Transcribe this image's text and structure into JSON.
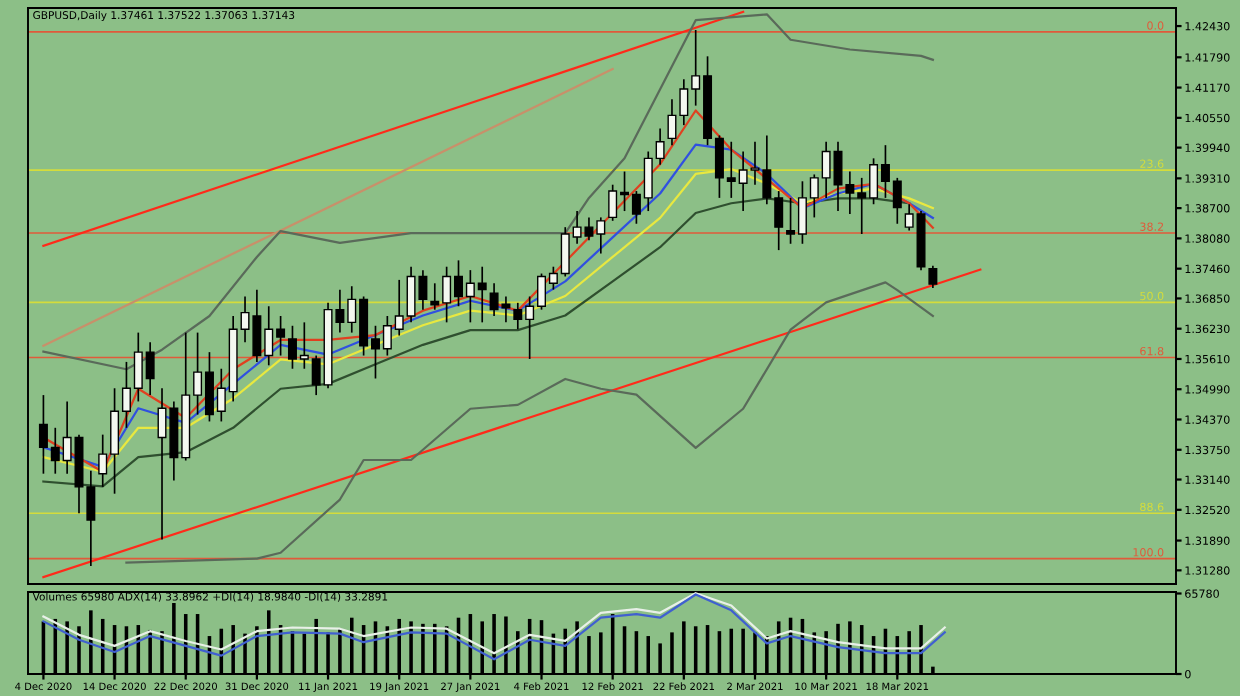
{
  "chart_data": [
    {
      "type": "candlestick",
      "title": "GBPUSD,Daily 1.37461 1.37522 1.37063 1.37143",
      "ohlc": [
        [
          1.3427,
          1.3487,
          1.3326,
          1.338
        ],
        [
          1.338,
          1.342,
          1.3326,
          1.3353
        ],
        [
          1.3353,
          1.3474,
          1.3326,
          1.34
        ],
        [
          1.34,
          1.3406,
          1.3245,
          1.3299
        ],
        [
          1.3299,
          1.3332,
          1.3137,
          1.3231
        ],
        [
          1.3326,
          1.3406,
          1.3299,
          1.3366
        ],
        [
          1.3366,
          1.3501,
          1.3285,
          1.3454
        ],
        [
          1.3454,
          1.3555,
          1.342,
          1.3501
        ],
        [
          1.3501,
          1.3615,
          1.3474,
          1.3575
        ],
        [
          1.3575,
          1.3595,
          1.3487,
          1.3521
        ],
        [
          1.34,
          1.3501,
          1.3191,
          1.346
        ],
        [
          1.346,
          1.3474,
          1.3312,
          1.3359
        ],
        [
          1.3359,
          1.3615,
          1.3353,
          1.3487
        ],
        [
          1.3487,
          1.3615,
          1.3447,
          1.3534
        ],
        [
          1.3534,
          1.3575,
          1.3433,
          1.3447
        ],
        [
          1.3454,
          1.3541,
          1.3433,
          1.3501
        ],
        [
          1.3494,
          1.3649,
          1.3474,
          1.3622
        ],
        [
          1.3622,
          1.3689,
          1.3595,
          1.3656
        ],
        [
          1.3649,
          1.3703,
          1.3555,
          1.3568
        ],
        [
          1.3568,
          1.3669,
          1.3548,
          1.3622
        ],
        [
          1.3622,
          1.3649,
          1.3568,
          1.3606
        ],
        [
          1.3602,
          1.3629,
          1.3541,
          1.3561
        ],
        [
          1.3561,
          1.3636,
          1.3541,
          1.3568
        ],
        [
          1.3561,
          1.3568,
          1.3487,
          1.3508
        ],
        [
          1.3508,
          1.3676,
          1.3501,
          1.3662
        ],
        [
          1.3662,
          1.3703,
          1.3615,
          1.3636
        ],
        [
          1.3636,
          1.371,
          1.3615,
          1.3683
        ],
        [
          1.3683,
          1.3689,
          1.3568,
          1.3588
        ],
        [
          1.3602,
          1.3629,
          1.3521,
          1.3582
        ],
        [
          1.3582,
          1.3649,
          1.3568,
          1.3629
        ],
        [
          1.3622,
          1.3723,
          1.3609,
          1.3649
        ],
        [
          1.3649,
          1.375,
          1.3636,
          1.373
        ],
        [
          1.373,
          1.3743,
          1.3662,
          1.3683
        ],
        [
          1.3679,
          1.3716,
          1.3662,
          1.3672
        ],
        [
          1.3676,
          1.375,
          1.3636,
          1.373
        ],
        [
          1.373,
          1.3763,
          1.3669,
          1.3689
        ],
        [
          1.3689,
          1.3743,
          1.3636,
          1.3716
        ],
        [
          1.3716,
          1.375,
          1.3636,
          1.3703
        ],
        [
          1.3696,
          1.3716,
          1.3649,
          1.3662
        ],
        [
          1.3673,
          1.3689,
          1.3636,
          1.3666
        ],
        [
          1.3662,
          1.3676,
          1.3622,
          1.3642
        ],
        [
          1.3642,
          1.3689,
          1.3561,
          1.3669
        ],
        [
          1.3669,
          1.3736,
          1.3662,
          1.373
        ],
        [
          1.3716,
          1.375,
          1.3703,
          1.3736
        ],
        [
          1.3736,
          1.3831,
          1.373,
          1.3817
        ],
        [
          1.3811,
          1.3864,
          1.3797,
          1.3831
        ],
        [
          1.3831,
          1.3851,
          1.3804,
          1.3813
        ],
        [
          1.3817,
          1.3851,
          1.3777,
          1.3844
        ],
        [
          1.3851,
          1.3918,
          1.3844,
          1.3905
        ],
        [
          1.3902,
          1.3945,
          1.3864,
          1.3898
        ],
        [
          1.3898,
          1.3905,
          1.3838,
          1.3858
        ],
        [
          1.3891,
          1.3986,
          1.3864,
          1.3972
        ],
        [
          1.3972,
          1.4033,
          1.3959,
          1.4006
        ],
        [
          1.4013,
          1.4093,
          1.3999,
          1.406
        ],
        [
          1.406,
          1.4134,
          1.404,
          1.4114
        ],
        [
          1.4114,
          1.4235,
          1.408,
          1.4141
        ],
        [
          1.4141,
          1.4181,
          1.3999,
          1.4013
        ],
        [
          1.4013,
          1.4019,
          1.3891,
          1.3932
        ],
        [
          1.3932,
          1.4006,
          1.3891,
          1.3925
        ],
        [
          1.3921,
          1.3986,
          1.3864,
          1.3948
        ],
        [
          1.3948,
          1.4006,
          1.3918,
          1.3952
        ],
        [
          1.3948,
          1.4019,
          1.3878,
          1.3891
        ],
        [
          1.3891,
          1.3905,
          1.3784,
          1.3831
        ],
        [
          1.3824,
          1.3891,
          1.3797,
          1.3817
        ],
        [
          1.3817,
          1.3925,
          1.3797,
          1.3891
        ],
        [
          1.3891,
          1.3939,
          1.3851,
          1.3932
        ],
        [
          1.3932,
          1.4006,
          1.3891,
          1.3986
        ],
        [
          1.3986,
          1.4006,
          1.3864,
          1.3918
        ],
        [
          1.3918,
          1.3945,
          1.3858,
          1.3901
        ],
        [
          1.3901,
          1.3932,
          1.3817,
          1.3891
        ],
        [
          1.3891,
          1.3972,
          1.3878,
          1.3959
        ],
        [
          1.3959,
          1.3999,
          1.3891,
          1.3925
        ],
        [
          1.3925,
          1.3932,
          1.3838,
          1.3871
        ],
        [
          1.3831,
          1.3878,
          1.3824,
          1.3858
        ],
        [
          1.3858,
          1.3864,
          1.3743,
          1.375
        ],
        [
          1.37461,
          1.37522,
          1.37063,
          1.37143
        ],
        null,
        null,
        null,
        null,
        null,
        null,
        null,
        null,
        null,
        null,
        null,
        null,
        null,
        null,
        null,
        null,
        null,
        null,
        null,
        null
      ],
      "series": [
        {
          "type": "line",
          "color": "#ff2a1a",
          "values": [
            1.3114,
            null,
            null,
            null,
            null,
            null,
            null,
            null,
            null,
            null,
            null,
            null,
            null,
            null,
            null,
            null,
            null,
            null,
            null,
            null,
            null,
            null,
            null,
            null,
            null,
            null,
            null,
            null,
            null,
            null,
            null,
            null,
            null,
            null,
            null,
            null,
            null,
            null,
            null,
            null,
            null,
            null,
            null,
            null,
            null,
            null,
            null,
            null,
            null,
            null,
            null,
            null,
            null,
            null,
            null,
            null,
            null,
            null,
            null,
            null,
            null,
            null,
            null,
            null,
            null,
            null,
            null,
            null,
            null,
            null,
            null,
            null,
            null,
            null,
            null,
            null,
            null,
            null,
            null,
            1.3744,
            null,
            null,
            null,
            null,
            null,
            null,
            null,
            null,
            null,
            null,
            null,
            null,
            null,
            null,
            null,
            null
          ]
        },
        {
          "type": "line",
          "color": "#ff2a1a",
          "values": [
            1.3793,
            null,
            null,
            null,
            null,
            null,
            null,
            null,
            null,
            null,
            null,
            null,
            null,
            null,
            null,
            null,
            null,
            null,
            null,
            null,
            null,
            null,
            null,
            null,
            null,
            null,
            null,
            null,
            null,
            null,
            null,
            null,
            null,
            null,
            null,
            null,
            null,
            null,
            null,
            null,
            null,
            null,
            null,
            null,
            null,
            null,
            null,
            null,
            null,
            null,
            null,
            null,
            null,
            null,
            null,
            null,
            null,
            null,
            null,
            1.4272,
            null,
            null,
            null,
            null,
            null,
            null,
            null,
            null,
            null,
            null,
            null,
            null,
            null,
            null,
            null,
            null,
            null,
            null,
            null,
            null,
            null,
            null,
            null,
            null,
            null,
            null,
            null,
            null,
            null,
            null,
            null,
            null,
            null,
            null,
            null,
            null
          ]
        },
        {
          "type": "line",
          "color": "#c8906a",
          "values": [
            1.3588,
            null,
            null,
            null,
            null,
            null,
            null,
            null,
            null,
            null,
            null,
            null,
            null,
            null,
            null,
            null,
            null,
            null,
            null,
            null,
            null,
            null,
            null,
            null,
            null,
            null,
            null,
            null,
            null,
            null,
            null,
            null,
            null,
            null,
            null,
            null,
            null,
            null,
            null,
            null,
            null,
            null,
            null,
            null,
            null,
            null,
            null,
            null,
            1.4155,
            null,
            null,
            null,
            null,
            null,
            null,
            null,
            null,
            null,
            null,
            null,
            null,
            null,
            null,
            null,
            null,
            null,
            null,
            null,
            null,
            null,
            null,
            null,
            null,
            null,
            null,
            null,
            null,
            null,
            null,
            null,
            null,
            null,
            null,
            null,
            null,
            null,
            null,
            null,
            null,
            null,
            null,
            null,
            null,
            null,
            null,
            null
          ]
        },
        {
          "type": "line",
          "color": "#5a6a5a",
          "values": [
            1.3576,
            null,
            null,
            null,
            null,
            null,
            null,
            1.354,
            null,
            null,
            1.358,
            null,
            null,
            null,
            1.3649,
            null,
            null,
            null,
            1.377,
            null,
            1.3823,
            null,
            null,
            null,
            null,
            1.3799,
            null,
            null,
            null,
            null,
            null,
            1.3819,
            null,
            null,
            1.3819,
            null,
            null,
            null,
            null,
            null,
            null,
            null,
            null,
            null,
            1.3819,
            null,
            1.3891,
            null,
            null,
            1.3972,
            null,
            null,
            null,
            null,
            null,
            1.4255,
            null,
            null,
            null,
            null,
            null,
            1.4267,
            null,
            1.4215,
            null,
            null,
            null,
            null,
            1.4195,
            null,
            null,
            null,
            null,
            null,
            1.4182,
            1.4174,
            null,
            null,
            null,
            null,
            null,
            null,
            null,
            null,
            null,
            null,
            null,
            null,
            null,
            null,
            null,
            null,
            null,
            null,
            null,
            null
          ]
        },
        {
          "type": "line",
          "color": "#5a6a5a",
          "values": [
            null,
            null,
            null,
            null,
            null,
            null,
            null,
            1.3144,
            null,
            null,
            null,
            null,
            null,
            null,
            null,
            null,
            null,
            null,
            1.3152,
            null,
            1.3164,
            null,
            null,
            null,
            null,
            1.3273,
            null,
            1.3354,
            null,
            null,
            null,
            1.3354,
            null,
            null,
            null,
            null,
            1.3459,
            null,
            null,
            null,
            1.3467,
            null,
            null,
            null,
            1.352,
            null,
            null,
            1.35,
            null,
            null,
            1.3488,
            null,
            null,
            null,
            null,
            1.3379,
            null,
            null,
            null,
            1.3459,
            null,
            null,
            null,
            1.3621,
            null,
            null,
            1.3677,
            null,
            null,
            null,
            null,
            1.3718,
            1.3702,
            null,
            null,
            1.3649,
            null,
            null,
            null,
            null,
            null,
            null,
            null,
            null,
            null,
            null,
            null,
            null,
            null,
            null,
            null,
            null,
            null,
            null,
            null,
            null
          ]
        },
        {
          "type": "line",
          "color": "#2f4f2f",
          "values": [
            1.331,
            null,
            null,
            null,
            null,
            1.33,
            null,
            null,
            1.336,
            null,
            null,
            null,
            1.337,
            null,
            null,
            null,
            1.342,
            null,
            null,
            null,
            1.35,
            null,
            null,
            null,
            1.351,
            null,
            null,
            null,
            1.355,
            null,
            null,
            null,
            1.359,
            null,
            null,
            null,
            1.362,
            null,
            null,
            null,
            1.362,
            null,
            null,
            null,
            1.365,
            null,
            null,
            null,
            1.372,
            null,
            null,
            null,
            1.379,
            null,
            null,
            1.386,
            null,
            null,
            1.388,
            null,
            null,
            1.389,
            null,
            null,
            1.388,
            null,
            null,
            1.389,
            null,
            null,
            1.389,
            null,
            null,
            1.388,
            null,
            null,
            null,
            null,
            null,
            null,
            null,
            null,
            null,
            null,
            null,
            null,
            null,
            null,
            null,
            null,
            null,
            null,
            null,
            null,
            null,
            null
          ]
        },
        {
          "type": "line",
          "color": "#e8e840",
          "values": [
            1.336,
            null,
            null,
            null,
            null,
            1.333,
            null,
            null,
            1.342,
            null,
            null,
            null,
            1.342,
            null,
            null,
            null,
            1.348,
            null,
            null,
            null,
            1.356,
            null,
            null,
            null,
            1.355,
            null,
            null,
            null,
            1.359,
            null,
            null,
            null,
            1.363,
            null,
            null,
            null,
            1.366,
            null,
            null,
            null,
            1.365,
            null,
            null,
            null,
            1.369,
            null,
            null,
            null,
            1.377,
            null,
            null,
            null,
            1.385,
            null,
            null,
            1.394,
            null,
            null,
            1.395,
            null,
            null,
            1.392,
            null,
            null,
            1.388,
            null,
            null,
            1.39,
            null,
            null,
            1.391,
            null,
            null,
            1.389,
            null,
            1.387,
            null,
            null,
            null,
            null,
            null,
            null,
            null,
            null,
            null,
            null,
            null,
            null,
            null,
            null,
            null,
            null,
            null,
            null,
            null,
            null
          ]
        },
        {
          "type": "line",
          "color": "#3050e0",
          "values": [
            1.338,
            null,
            null,
            null,
            null,
            1.334,
            null,
            null,
            1.346,
            null,
            null,
            null,
            1.343,
            null,
            null,
            null,
            1.351,
            null,
            null,
            null,
            1.359,
            null,
            null,
            null,
            1.357,
            null,
            null,
            null,
            1.361,
            null,
            null,
            null,
            1.365,
            null,
            null,
            null,
            1.368,
            null,
            null,
            null,
            1.366,
            null,
            null,
            null,
            1.372,
            null,
            null,
            null,
            1.381,
            null,
            null,
            null,
            1.39,
            null,
            null,
            1.4,
            null,
            null,
            1.399,
            null,
            null,
            1.394,
            null,
            null,
            1.387,
            null,
            null,
            1.39,
            null,
            null,
            1.392,
            null,
            null,
            1.388,
            null,
            1.385,
            null,
            null,
            null,
            null,
            null,
            null,
            null,
            null,
            null,
            null,
            null,
            null,
            null,
            null,
            null,
            null,
            null,
            null,
            null,
            null
          ]
        },
        {
          "type": "line",
          "color": "#e04020",
          "values": [
            1.34,
            null,
            null,
            null,
            null,
            1.333,
            null,
            null,
            1.35,
            null,
            null,
            null,
            1.344,
            null,
            null,
            null,
            1.354,
            null,
            null,
            null,
            1.36,
            null,
            null,
            null,
            1.36,
            null,
            null,
            null,
            1.361,
            null,
            null,
            null,
            1.366,
            null,
            null,
            null,
            1.369,
            null,
            null,
            null,
            1.366,
            null,
            null,
            null,
            1.376,
            null,
            null,
            null,
            1.386,
            null,
            null,
            null,
            1.396,
            null,
            null,
            1.407,
            null,
            null,
            1.399,
            null,
            null,
            1.393,
            null,
            null,
            1.387,
            null,
            null,
            1.391,
            null,
            null,
            1.392,
            null,
            null,
            1.388,
            null,
            1.383,
            null,
            null,
            null,
            null,
            null,
            null,
            null,
            null,
            null,
            null,
            null,
            null,
            null,
            null,
            null,
            null,
            null,
            null,
            null,
            null
          ]
        }
      ],
      "ref_lines": [
        {
          "axis": "y",
          "value": 1.4231,
          "color": "#e05a3a"
        },
        {
          "axis": "y",
          "value": 1.3948,
          "color": "#d4dc3c"
        },
        {
          "axis": "y",
          "value": 1.3819,
          "color": "#e05a3a"
        },
        {
          "axis": "y",
          "value": 1.3677,
          "color": "#d4dc3c"
        },
        {
          "axis": "y",
          "value": 1.3564,
          "color": "#e05a3a"
        },
        {
          "axis": "y",
          "value": 1.3245,
          "color": "#d4dc3c"
        },
        {
          "axis": "y",
          "value": 1.3152,
          "color": "#e05a3a"
        }
      ],
      "annotations": [
        {
          "text": "0.0",
          "y": 1.4231
        },
        {
          "text": "23.6",
          "y": 1.3948
        },
        {
          "text": "38.2",
          "y": 1.3819
        },
        {
          "text": "50.0",
          "y": 1.3677
        },
        {
          "text": "61.8",
          "y": 1.3564
        },
        {
          "text": "88.6",
          "y": 1.3245
        },
        {
          "text": "100.0",
          "y": 1.3152
        }
      ],
      "ylim": [
        1.31,
        1.428
      ],
      "yticks": [
        {
          "value": 1.4243,
          "label": "1.42430"
        },
        {
          "value": 1.4179,
          "label": "1.41790"
        },
        {
          "value": 1.4117,
          "label": "1.41170"
        },
        {
          "value": 1.4055,
          "label": "1.40550"
        },
        {
          "value": 1.3994,
          "label": "1.39940"
        },
        {
          "value": 1.3931,
          "label": "1.39310"
        },
        {
          "value": 1.387,
          "label": "1.38700"
        },
        {
          "value": 1.3808,
          "label": "1.38080"
        },
        {
          "value": 1.3746,
          "label": "1.37460"
        },
        {
          "value": 1.3685,
          "label": "1.36850"
        },
        {
          "value": 1.3623,
          "label": "1.36230"
        },
        {
          "value": 1.3561,
          "label": "1.35610"
        },
        {
          "value": 1.3499,
          "label": "1.34990"
        },
        {
          "value": 1.3437,
          "label": "1.34370"
        },
        {
          "value": 1.3375,
          "label": "1.33750"
        },
        {
          "value": 1.3314,
          "label": "1.33140"
        },
        {
          "value": 1.3252,
          "label": "1.32520"
        },
        {
          "value": 1.3189,
          "label": "1.31890"
        },
        {
          "value": 1.3128,
          "label": "1.31280"
        }
      ],
      "tick_labels": "y"
    },
    {
      "type": "bar",
      "title": "Volumes 65980 ADX(14) 33.8962 +DI(14) 18.9840 -DI(14) 33.2891",
      "categories": [
        "4 Dec 2020",
        null,
        null,
        null,
        null,
        null,
        "14 Dec 2020",
        null,
        null,
        null,
        null,
        null,
        "22 Dec 2020",
        null,
        null,
        null,
        null,
        null,
        "31 Dec 2020",
        null,
        null,
        null,
        null,
        null,
        "11 Jan 2021",
        null,
        null,
        null,
        null,
        null,
        "19 Jan 2021",
        null,
        null,
        null,
        null,
        null,
        "27 Jan 2021",
        null,
        null,
        null,
        null,
        null,
        "4 Feb 2021",
        null,
        null,
        null,
        null,
        null,
        "12 Feb 2021",
        null,
        null,
        null,
        null,
        null,
        "22 Feb 2021",
        null,
        null,
        null,
        null,
        null,
        "2 Mar 2021",
        null,
        null,
        null,
        null,
        null,
        "10 Mar 2021",
        null,
        null,
        null,
        null,
        null,
        "18 Mar 2021",
        null,
        null,
        null,
        null,
        null,
        null,
        null,
        null,
        null,
        null,
        null,
        null,
        null,
        null,
        null,
        null,
        null,
        null,
        null,
        null,
        null,
        null,
        null
      ],
      "values": [
        43000,
        45000,
        43000,
        39000,
        52000,
        45000,
        40000,
        39000,
        40000,
        36000,
        35000,
        58000,
        49000,
        49000,
        31000,
        37000,
        40000,
        33000,
        39000,
        52000,
        40000,
        35000,
        33000,
        45000,
        34000,
        37000,
        46000,
        40000,
        43000,
        39000,
        45000,
        43000,
        41000,
        41000,
        39000,
        46000,
        49000,
        43000,
        49000,
        47000,
        35000,
        45000,
        44000,
        33000,
        37000,
        43000,
        31000,
        34000,
        49000,
        39000,
        35000,
        31000,
        25000,
        34000,
        43000,
        39000,
        40000,
        35000,
        37000,
        37000,
        34000,
        31000,
        43000,
        46000,
        45000,
        34000,
        35000,
        41000,
        43000,
        40000,
        31000,
        37000,
        31000,
        35000,
        40000,
        6000,
        null,
        null,
        null,
        null,
        null,
        null,
        null,
        null,
        null,
        null,
        null,
        null,
        null,
        null,
        null,
        null,
        null,
        null,
        null,
        null
      ],
      "color": "#000000",
      "series": [
        {
          "type": "line",
          "color": "#e8f0e8",
          "values": [
            47000,
            null,
            null,
            32000,
            null,
            null,
            23000,
            null,
            null,
            35000,
            null,
            null,
            27000,
            null,
            null,
            20000,
            null,
            null,
            35000,
            null,
            null,
            38000,
            null,
            null,
            null,
            37000,
            null,
            31000,
            null,
            null,
            null,
            38000,
            null,
            null,
            37000,
            null,
            null,
            null,
            17000,
            null,
            null,
            32000,
            null,
            null,
            27000,
            null,
            null,
            50000,
            null,
            null,
            53000,
            null,
            50000,
            null,
            null,
            66000,
            null,
            null,
            56000,
            null,
            null,
            29000,
            null,
            35000,
            null,
            null,
            null,
            26000,
            null,
            null,
            null,
            21000,
            null,
            null,
            21000,
            null,
            38000,
            null,
            null,
            null,
            null,
            null,
            null,
            null,
            null,
            null,
            null,
            null,
            null,
            null,
            null,
            null,
            null,
            null,
            null,
            null
          ]
        },
        {
          "type": "line",
          "color": "#4060d0",
          "values": [
            43000,
            null,
            null,
            28000,
            null,
            null,
            18000,
            null,
            null,
            31000,
            null,
            null,
            23000,
            null,
            null,
            15000,
            null,
            null,
            31000,
            null,
            null,
            34000,
            null,
            null,
            null,
            33000,
            null,
            26000,
            null,
            null,
            null,
            34000,
            null,
            null,
            33000,
            null,
            null,
            null,
            12000,
            null,
            null,
            28000,
            null,
            null,
            23000,
            null,
            null,
            46000,
            null,
            null,
            49000,
            null,
            46000,
            null,
            null,
            65000,
            null,
            null,
            52000,
            null,
            null,
            25000,
            null,
            31000,
            null,
            null,
            null,
            22000,
            null,
            null,
            null,
            17000,
            null,
            null,
            17000,
            null,
            34000,
            null,
            null,
            null,
            null,
            null,
            null,
            null,
            null,
            null,
            null,
            null,
            null,
            null,
            null,
            null,
            null,
            null,
            null,
            null
          ]
        }
      ],
      "ylim": [
        0,
        67000
      ],
      "yticks": [
        0,
        65780
      ]
    }
  ]
}
